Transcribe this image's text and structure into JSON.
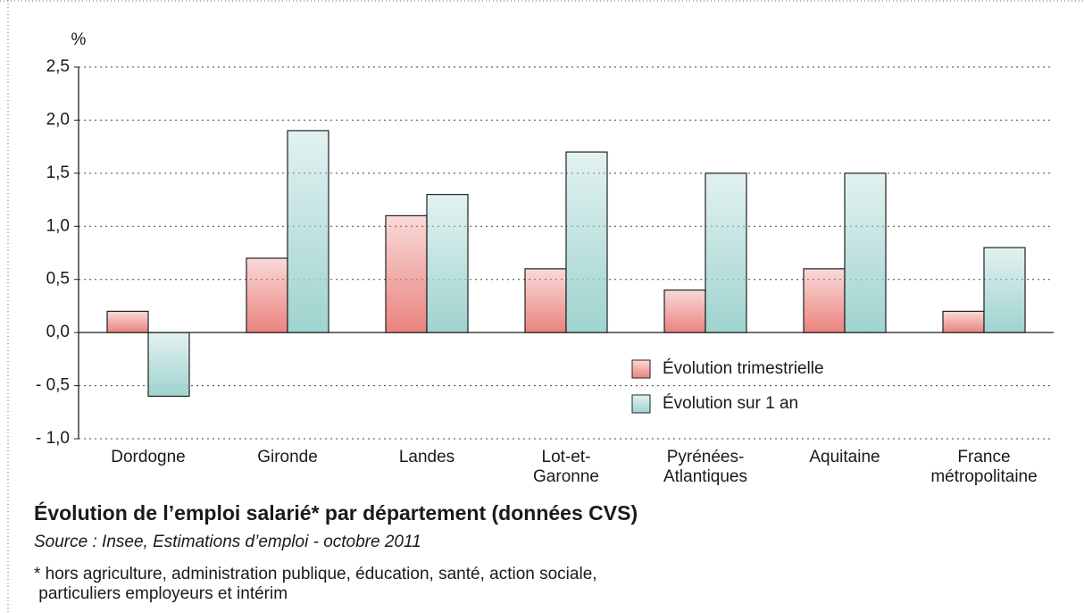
{
  "chart_data": {
    "type": "bar",
    "title": "Évolution de l’emploi salarié* par département (données CVS)",
    "source": "Source : Insee, Estimations d’emploi - octobre 2011",
    "footnote": [
      "* hors agriculture, administration publique, éducation, santé, action sociale,",
      " particuliers employeurs et intérim"
    ],
    "ylabel": "%",
    "categories": [
      "Dordogne",
      "Gironde",
      "Landes",
      "Lot-et-\nGaronne",
      "Pyrénées-\nAtlantiques",
      "Aquitaine",
      "France\nmétropolitaine"
    ],
    "series": [
      {
        "name": "Évolution trimestrielle",
        "color": "#ea837e",
        "values": [
          0.2,
          0.7,
          1.1,
          0.6,
          0.4,
          0.6,
          0.2
        ]
      },
      {
        "name": "Évolution sur 1 an",
        "color": "#9fd3cf",
        "values": [
          -0.6,
          1.9,
          1.3,
          1.7,
          1.5,
          1.5,
          0.8
        ]
      }
    ],
    "ylim": [
      -1.0,
      2.5
    ],
    "yticks": [
      {
        "value": -1.0,
        "label": "- 1,0"
      },
      {
        "value": -0.5,
        "label": "- 0,5"
      },
      {
        "value": 0,
        "label": "0,0"
      },
      {
        "value": 0.5,
        "label": "0,5"
      },
      {
        "value": 1.0,
        "label": "1,0"
      },
      {
        "value": 1.5,
        "label": "1,5"
      },
      {
        "value": 2.0,
        "label": "2,0"
      },
      {
        "value": 2.5,
        "label": "2,5"
      }
    ],
    "grid": true
  }
}
